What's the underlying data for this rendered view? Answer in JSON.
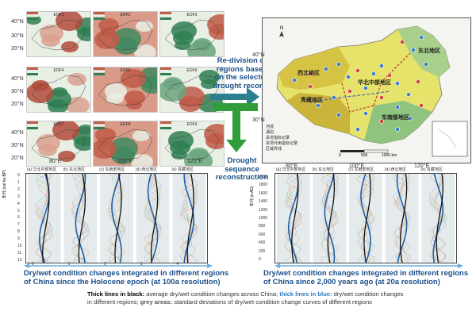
{
  "eof_panels": [
    {
      "label": "EOF1"
    },
    {
      "label": "EOF2"
    },
    {
      "label": "EOF3"
    },
    {
      "label": "EOF4"
    },
    {
      "label": "EOF5"
    },
    {
      "label": "EOF6"
    },
    {
      "label": "EOF7"
    },
    {
      "label": "EOF8"
    },
    {
      "label": "EOF9"
    }
  ],
  "eof_axes": {
    "lon": [
      "80°E",
      "100°E",
      "120°E"
    ],
    "lat": [
      "40°N",
      "30°N",
      "20°N",
      "40°N",
      "30°N",
      "20°N",
      "40°N",
      "30°N",
      "20°N"
    ]
  },
  "arrows": {
    "redivision": "Re-division of regions based on the selected drought records",
    "reconstruction": "Drought sequence reconstruction"
  },
  "map": {
    "regions": [
      "西北地区",
      "青藏地区",
      "东北地区",
      "华北中部地区",
      "东南部地区"
    ],
    "lon_ticks": [
      "80°E",
      "100°E",
      "120°E"
    ],
    "lat_ticks": [
      "40°N",
      "30°N"
    ],
    "legend": [
      "河流",
      "湖泊",
      "旱涝指标记录",
      "旱涝代用指标记录",
      "区域界线"
    ],
    "scalebar": [
      "0",
      "500",
      "1000 km"
    ],
    "colors": {
      "high": "#d8c340",
      "mid": "#e8e66a",
      "low": "#7dbb78",
      "water": "#b7d9ea"
    }
  },
  "holocene_panel": {
    "columns": [
      "(a) 华北中部地区",
      "(b) 东北地区",
      "(c) 东南部地区",
      "(d) 西北地区",
      "(e) 青藏地区"
    ],
    "top_ticks": [
      "0",
      "1",
      "2",
      "3",
      "4"
    ],
    "y_label": "年代 (cal ka BP)",
    "y_ticks": [
      "0",
      "1",
      "2",
      "3",
      "4",
      "5",
      "6",
      "7",
      "8",
      "9",
      "10",
      "11",
      "12"
    ]
  },
  "recent_panel": {
    "columns": [
      "(a) 华北中部地区",
      "(b) 东北地区",
      "(c) 东南部地区",
      "(d) 西北地区",
      "(e) 青藏地区"
    ],
    "y_label": "年代 (a AD)",
    "y_ticks": [
      "2000",
      "1800",
      "1600",
      "1400",
      "1200",
      "1000",
      "800",
      "600",
      "400",
      "200",
      "0"
    ]
  },
  "captions": {
    "left": "Dry/wet condition changes integrated in different regions of China since the Holocene epoch (at 100a resolution)",
    "right": "Dry/wet condition changes integrated in different regions of China since 2,000 years ago (at 20a resolution)"
  },
  "footnote": {
    "thick_black": "Thick lines in black:",
    "thick_black_desc": " average dry/wet condition changes across China; ",
    "thick_blue": "thick lines in blue:",
    "thick_blue_desc": " dry/wet condition changes in different regions; ",
    "grey": "grey areas:",
    "grey_desc": " standard deviations of dry/wet condition change curves of different regions"
  },
  "colors": {
    "accent_blue": "#1b4f8a",
    "arrow_green": "#2f9e3a",
    "arrow_teal": "#2b7f8f",
    "guide_blue": "#66aee0"
  }
}
